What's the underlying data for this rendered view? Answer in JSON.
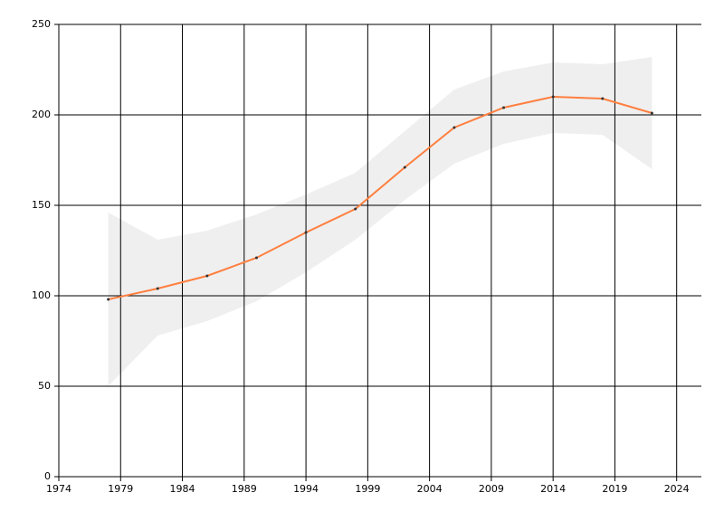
{
  "chart_data": {
    "type": "line",
    "x": [
      1978,
      1982,
      1986,
      1990,
      1994,
      1998,
      2002,
      2006,
      2010,
      2014,
      2018,
      2022
    ],
    "series": [
      {
        "color": "#ff7f3f",
        "values": [
          98,
          104,
          111,
          121,
          135,
          148,
          171,
          193,
          204,
          210,
          209,
          201
        ]
      }
    ],
    "band": {
      "color": "#efefef",
      "upper": [
        146,
        131,
        136,
        145,
        156,
        168,
        191,
        214,
        224,
        229,
        228,
        232
      ],
      "lower": [
        50,
        78,
        86,
        97,
        113,
        131,
        153,
        173,
        184,
        190,
        189,
        170
      ]
    },
    "xlim": [
      1974,
      2026
    ],
    "xticks": [
      1974,
      1979,
      1984,
      1989,
      1994,
      1999,
      2004,
      2009,
      2014,
      2019,
      2024
    ],
    "ylim": [
      0,
      250
    ],
    "yticks": [
      0,
      50,
      100,
      150,
      200,
      250
    ],
    "grid": true
  }
}
